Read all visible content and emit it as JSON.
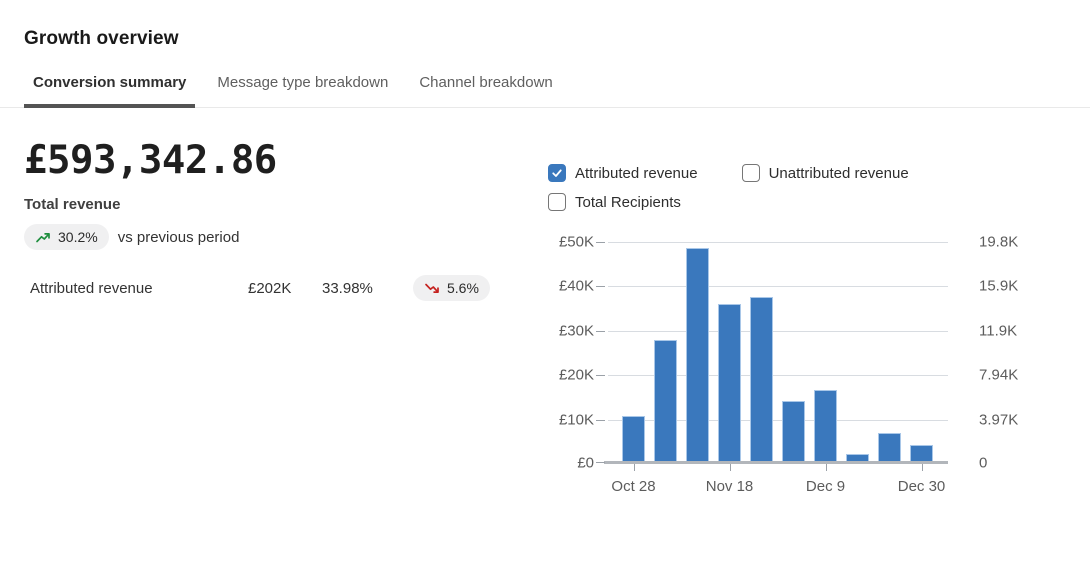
{
  "header": {
    "title": "Growth overview",
    "tabs": [
      {
        "label": "Conversion summary",
        "active": true
      },
      {
        "label": "Message type breakdown",
        "active": false
      },
      {
        "label": "Channel breakdown",
        "active": false
      }
    ]
  },
  "summary": {
    "total_value": "£593,342.86",
    "total_label": "Total revenue",
    "change_value": "30.2%",
    "change_direction": "up",
    "change_context": "vs previous period"
  },
  "breakdown_row": {
    "label": "Attributed revenue",
    "value": "£202K",
    "share": "33.98%",
    "change_value": "5.6%",
    "change_direction": "down"
  },
  "legend": {
    "rows": [
      [
        {
          "label": "Attributed revenue",
          "checked": true
        },
        {
          "label": "Unattributed revenue",
          "checked": false
        }
      ],
      [
        {
          "label": "Total Recipients",
          "checked": false
        }
      ]
    ]
  },
  "chart_data": {
    "type": "bar",
    "title": "",
    "series": [
      {
        "name": "Attributed revenue",
        "values_gbp": [
          10200,
          27600,
          48600,
          35900,
          37400,
          13800,
          16200,
          1700,
          6300,
          3700
        ]
      }
    ],
    "x_tick_labels": [
      "Oct 28",
      "Nov 18",
      "Dec 9",
      "Dec 30"
    ],
    "x_tick_bar_indices": [
      0,
      3,
      6,
      9
    ],
    "left_axis": {
      "ticks": [
        "£0",
        "£10K",
        "£20K",
        "£30K",
        "£40K",
        "£50K"
      ],
      "min": 0,
      "max": 50000
    },
    "right_axis": {
      "ticks": [
        "0",
        "3.97K",
        "7.94K",
        "11.9K",
        "15.9K",
        "19.8K"
      ]
    },
    "grid": true,
    "legend_position": "top",
    "bar_color": "#3a78bd"
  },
  "colors": {
    "accent_blue": "#3a78bd",
    "positive_green": "#1e8e3e",
    "negative_red": "#c5221f",
    "pill_bg": "#f0f0f1",
    "active_tab_underline": "#545454"
  },
  "icons": {
    "trend_up": "trend-up-icon",
    "trend_down": "trend-down-icon",
    "checkmark": "checkmark-icon"
  }
}
